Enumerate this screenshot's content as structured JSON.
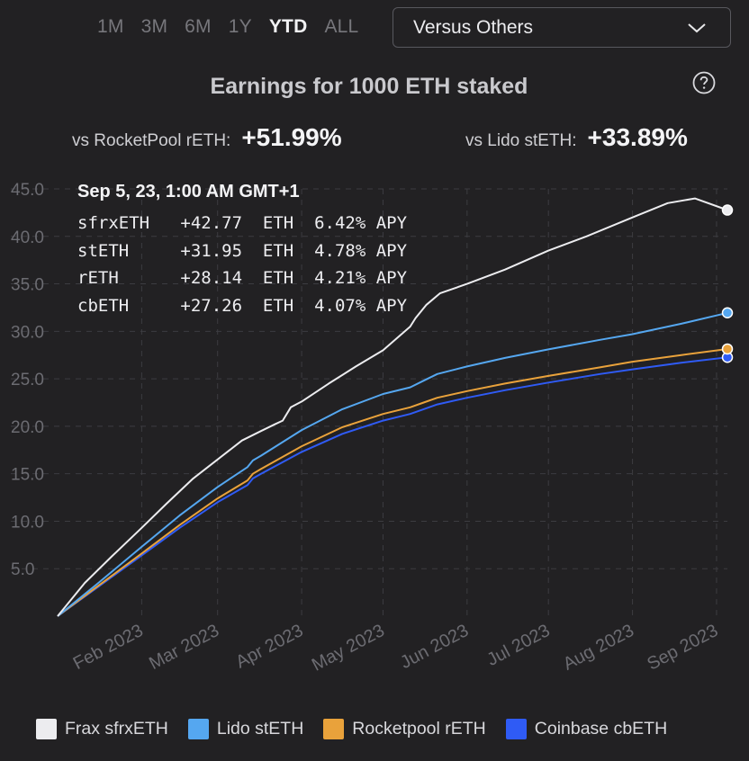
{
  "ranges": [
    "1M",
    "3M",
    "6M",
    "1Y",
    "YTD",
    "ALL"
  ],
  "active_range": "YTD",
  "select": {
    "label": "Versus Others"
  },
  "title": "Earnings for 1000 ETH staked",
  "comparisons": [
    {
      "label": "vs RocketPool rETH:",
      "value": "+51.99%"
    },
    {
      "label": "vs Lido stETH:",
      "value": "+33.89%"
    }
  ],
  "tooltip": {
    "date": "Sep 5, 23, 1:00 AM GMT+1",
    "rows": [
      {
        "name": "sfrxETH",
        "amount": "+42.77",
        "unit": "ETH",
        "apy": "6.42%",
        "apy_label": "APY"
      },
      {
        "name": "stETH",
        "amount": "+31.95",
        "unit": "ETH",
        "apy": "4.78%",
        "apy_label": "APY"
      },
      {
        "name": "rETH",
        "amount": "+28.14",
        "unit": "ETH",
        "apy": "4.21%",
        "apy_label": "APY"
      },
      {
        "name": "cbETH",
        "amount": "+27.26",
        "unit": "ETH",
        "apy": "4.07%",
        "apy_label": "APY"
      }
    ]
  },
  "legend": [
    {
      "label": "Frax sfrxETH",
      "color": "#ececef"
    },
    {
      "label": "Lido stETH",
      "color": "#55a7f0"
    },
    {
      "label": "Rocketpool rETH",
      "color": "#e9a23b"
    },
    {
      "label": "Coinbase cbETH",
      "color": "#2f5bf5"
    }
  ],
  "chart_data": {
    "type": "line",
    "title": "Earnings for 1000 ETH staked",
    "xlabel": "",
    "ylabel": "",
    "ylim": [
      0,
      45
    ],
    "xlim_day": [
      0,
      247
    ],
    "yticks": [
      "5.0",
      "10.0",
      "15.0",
      "20.0",
      "25.0",
      "30.0",
      "35.0",
      "40.0",
      "45.0"
    ],
    "ytick_values": [
      5,
      10,
      15,
      20,
      25,
      30,
      35,
      40,
      45
    ],
    "xticks": [
      {
        "label": "Feb 2023",
        "day": 31
      },
      {
        "label": "Mar 2023",
        "day": 59
      },
      {
        "label": "Apr 2023",
        "day": 90
      },
      {
        "label": "May 2023",
        "day": 120
      },
      {
        "label": "Jun 2023",
        "day": 151
      },
      {
        "label": "Jul 2023",
        "day": 181
      },
      {
        "label": "Aug 2023",
        "day": 212
      },
      {
        "label": "Sep 2023",
        "day": 243
      }
    ],
    "series": [
      {
        "name": "Frax sfrxETH",
        "color": "#ececef",
        "x": [
          0,
          10,
          20,
          31,
          40,
          50,
          59,
          68,
          75,
          80,
          83,
          86,
          90,
          100,
          110,
          120,
          130,
          132,
          136,
          141,
          151,
          165,
          181,
          195,
          212,
          225,
          235,
          247
        ],
        "y": [
          0,
          3.5,
          6.3,
          9.3,
          11.8,
          14.5,
          16.5,
          18.5,
          19.5,
          20.2,
          20.6,
          22,
          22.6,
          24.5,
          26.3,
          28,
          30.5,
          31.4,
          32.8,
          34,
          35,
          36.5,
          38.5,
          40,
          42,
          43.5,
          44,
          42.77
        ]
      },
      {
        "name": "Lido stETH",
        "color": "#55a7f0",
        "x": [
          0,
          15,
          31,
          45,
          59,
          70,
          72,
          75,
          90,
          105,
          120,
          130,
          135,
          140,
          151,
          165,
          181,
          200,
          212,
          230,
          247
        ],
        "y": [
          0,
          3.5,
          7.3,
          10.6,
          13.6,
          15.7,
          16.4,
          16.9,
          19.6,
          21.8,
          23.4,
          24.1,
          24.8,
          25.5,
          26.3,
          27.2,
          28.1,
          29.1,
          29.7,
          30.8,
          31.95
        ]
      },
      {
        "name": "Rocketpool rETH",
        "color": "#e9a23b",
        "x": [
          0,
          15,
          31,
          45,
          59,
          70,
          72,
          75,
          90,
          105,
          120,
          130,
          135,
          140,
          151,
          165,
          181,
          200,
          212,
          230,
          247
        ],
        "y": [
          0,
          3.2,
          6.6,
          9.6,
          12.4,
          14.3,
          15.0,
          15.5,
          17.9,
          19.9,
          21.3,
          22.0,
          22.5,
          23.0,
          23.7,
          24.5,
          25.3,
          26.2,
          26.8,
          27.5,
          28.14
        ]
      },
      {
        "name": "Coinbase cbETH",
        "color": "#2f5bf5",
        "x": [
          0,
          15,
          31,
          45,
          59,
          70,
          72,
          75,
          90,
          105,
          120,
          130,
          135,
          140,
          151,
          165,
          181,
          200,
          212,
          230,
          247
        ],
        "y": [
          0,
          3.1,
          6.4,
          9.3,
          12.0,
          13.8,
          14.5,
          15.0,
          17.3,
          19.2,
          20.6,
          21.3,
          21.8,
          22.3,
          23.0,
          23.8,
          24.6,
          25.5,
          26.0,
          26.7,
          27.26
        ]
      }
    ]
  }
}
